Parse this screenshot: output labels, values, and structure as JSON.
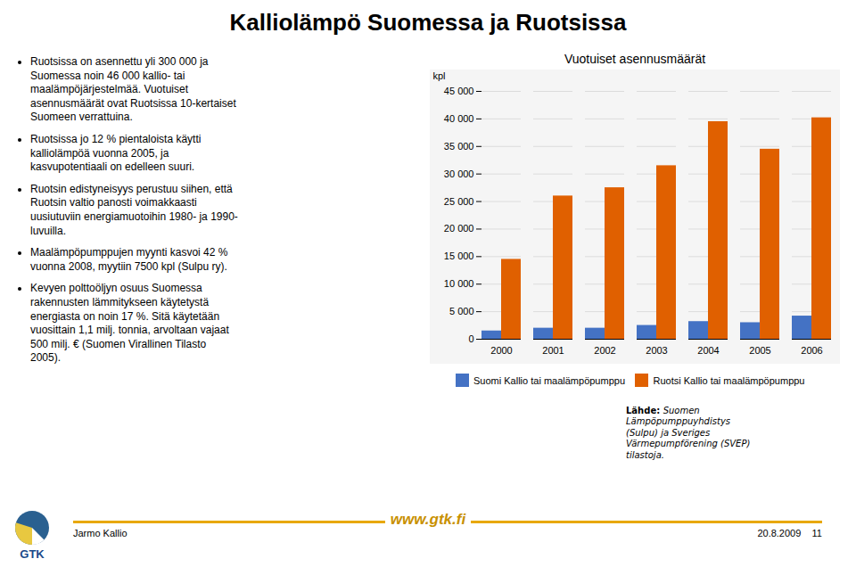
{
  "chart_data": {
    "type": "bar",
    "title": "Kalliolämpö Suomessa ja Ruotsissa",
    "subtitle": "Vuotuiset asennusmäärät",
    "ylabel": "kpl",
    "categories": [
      "2000",
      "2001",
      "2002",
      "2003",
      "2004",
      "2005",
      "2006"
    ],
    "series": [
      {
        "name": "Suomi Kallio tai maalämpöpumppu",
        "color": "#4472C4",
        "values": [
          1500,
          2000,
          2000,
          2500,
          3200,
          3000,
          4200
        ]
      },
      {
        "name": "Ruotsi Kallio tai maalämpöpumppu",
        "color": "#E06000",
        "values": [
          14500,
          26000,
          27500,
          31500,
          39500,
          34500,
          40200
        ]
      }
    ],
    "ylim": [
      0,
      45000
    ],
    "yticks": [
      0,
      {
        "value": 5000,
        "label": "5 000"
      },
      {
        "value": 10000,
        "label": "10 000"
      },
      {
        "value": 15000,
        "label": "15 000"
      },
      {
        "value": 20000,
        "label": "20 000"
      },
      {
        "value": 25000,
        "label": "25 000"
      },
      {
        "value": 30000,
        "label": "30 000"
      },
      {
        "value": 35000,
        "label": "35 000"
      },
      {
        "value": 40000,
        "label": "40 000"
      },
      {
        "value": 45000,
        "label": "45 000"
      }
    ],
    "grid": true,
    "legend": "bottom",
    "annotations": [
      "Ruotsissa on asennettu yli 300 000 ja\nSuomessa noin 46 000 kallio- tai\nmaalämpöjärjestelmää. Vuotuiset\nasennusmäärät ovat Ruotsissa 10-kertaiset\nSuomeen verrattuina.",
      "Ruotsissa jo 12 % pientaloista käytti\nkalliolämpöä vuonna 2005, ja\nkasvupotentiaali on edelleen suuri.",
      "Ruotsin edistyneisyys perustuu siihen, että\nRuotsin valtio panosti voimakkaasti\nuusiutuviin energiamuotoihin 1980- ja 1990-\nluvuilla.",
      "Maalämpöpumppujen myynti kasvoi 42 %\nvuonna 2008, myytiin 7500 kpl (Sulpu ry).",
      "Kevyen polttoöljyn osuus Suomessa\nrakennusten lämmitykseen käytetystä\nenergiasta on noin 17 %. Sitä käytetään\nvuosittain 1,1 milj. tonnia, arvoltaan vajaat\n500 milj. € (Suomen Virallinen Tilasto\n2005).",
      "Lähde: ",
      "Suomen\nLämpöpumppuyhdistys\n(Sulpu) ja Sveriges\nVärmepumpförening (SVEP)\ntilastoja.",
      "Jarmo Kallio",
      "20.8.2009    11",
      "www.gtk.fi",
      "GTK"
    ]
  }
}
